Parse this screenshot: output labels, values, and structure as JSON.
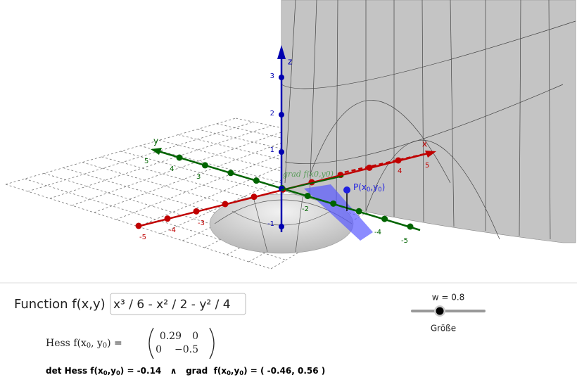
{
  "scene": {
    "axis_labels": {
      "x": "x",
      "y": "y",
      "z": "z"
    },
    "x_ticks": [
      "-5",
      "-4",
      "-3",
      "4",
      "5"
    ],
    "y_ticks": [
      "5",
      "4",
      "3",
      "-2",
      "-4",
      "-5"
    ],
    "z_ticks": [
      "3",
      "2",
      "1",
      "-1"
    ],
    "point_label": [
      "P(x",
      "0",
      ",y",
      "0",
      ")"
    ],
    "grad_label": "grad f(x0,y0)"
  },
  "input": {
    "label": "Function f(x,y) =",
    "value": "x³ / 6 - x² / 2 - y² / 4"
  },
  "slider": {
    "label": "w = 0.8",
    "caption": "Größe"
  },
  "hessian": {
    "label": [
      "Hess f(x",
      "0",
      ", y",
      "0",
      ") ="
    ],
    "matrix": [
      [
        "0.29",
        "0"
      ],
      [
        "0",
        "−0.5"
      ]
    ]
  },
  "summary": [
    "det Hess f(x",
    "0",
    ",y",
    "0",
    ") = -0.14   ∧   grad  f(x",
    "0",
    ",y",
    "0",
    ") = ( -0.46, 0.56 )"
  ]
}
